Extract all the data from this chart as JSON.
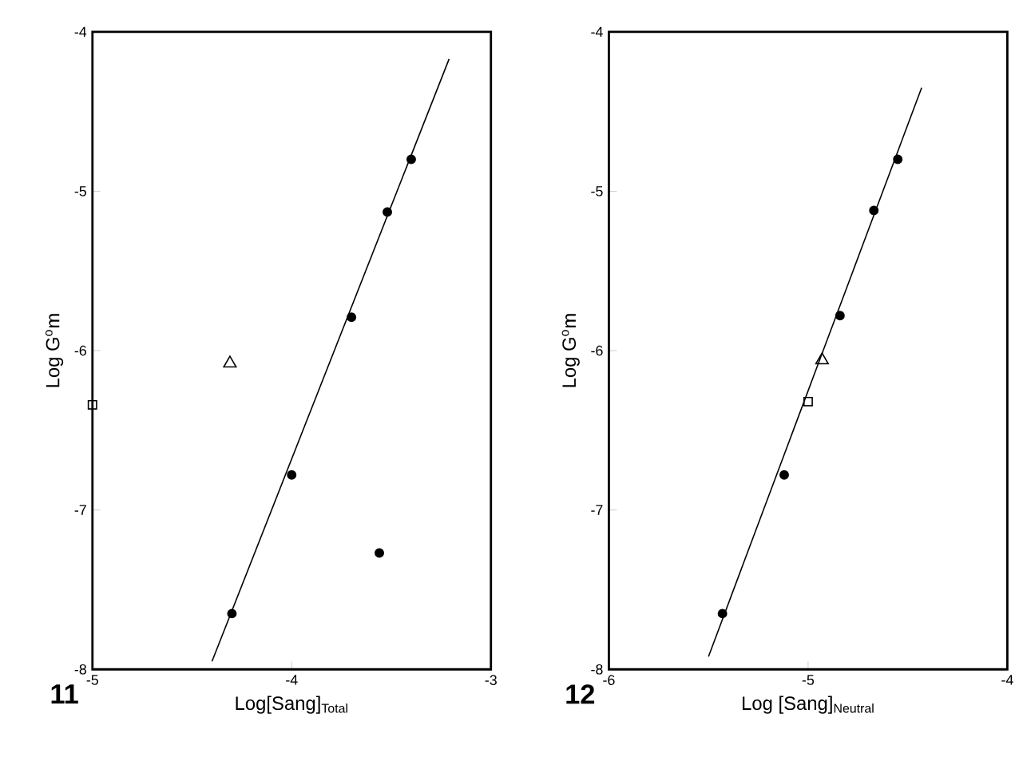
{
  "chart_data": [
    {
      "type": "scatter",
      "xlabel": "Log[Sang]$_{Total}$",
      "ylabel": "Log G$^{o}$m",
      "annotations": [
        "11"
      ],
      "xlim": [
        -5,
        -3
      ],
      "ylim": [
        -8,
        -4
      ],
      "xticks": [
        -5,
        -4,
        -3
      ],
      "yticks": [
        -8,
        -7,
        -6,
        -5,
        -4
      ],
      "series": [
        {
          "marker": "circle",
          "color": "#000000",
          "x": [
            -4.3,
            -4.0,
            -3.7,
            -3.52,
            -3.4
          ],
          "values": [
            -7.65,
            -6.78,
            -5.79,
            -5.13,
            -4.8
          ]
        },
        {
          "marker": "triangle",
          "color": "#000000",
          "x": [
            -4.31
          ],
          "values": [
            -6.08
          ]
        },
        {
          "marker": "square",
          "color": "#000000",
          "x": [
            -5.0
          ],
          "values": [
            -6.34
          ]
        },
        {
          "marker": "circle",
          "color": "#000000",
          "x": [
            -3.56
          ],
          "values": [
            -7.27
          ]
        },
        {
          "type": "line",
          "color": "#000000",
          "x": [
            -4.4,
            -3.21
          ],
          "values": [
            -7.95,
            -4.17
          ]
        }
      ]
    },
    {
      "type": "scatter",
      "xlabel": "Log [Sang]$_{Neutral}$",
      "ylabel": "Log G$^{o}$m",
      "annotations": [
        "12"
      ],
      "xlim": [
        -6,
        -4
      ],
      "ylim": [
        -8,
        -4
      ],
      "xticks": [
        -6,
        -5,
        -4
      ],
      "yticks": [
        -8,
        -7,
        -6,
        -5,
        -4
      ],
      "series": [
        {
          "marker": "circle",
          "color": "#000000",
          "x": [
            -5.43,
            -5.12,
            -4.84,
            -4.67,
            -4.55
          ],
          "values": [
            -7.65,
            -6.78,
            -5.78,
            -5.12,
            -4.8
          ]
        },
        {
          "marker": "triangle",
          "color": "#000000",
          "x": [
            -4.93
          ],
          "values": [
            -6.06
          ]
        },
        {
          "marker": "square",
          "color": "#000000",
          "x": [
            -5.0
          ],
          "values": [
            -6.32
          ]
        },
        {
          "type": "line",
          "color": "#000000",
          "x": [
            -5.5,
            -4.43
          ],
          "values": [
            -7.92,
            -4.35
          ]
        }
      ]
    }
  ]
}
